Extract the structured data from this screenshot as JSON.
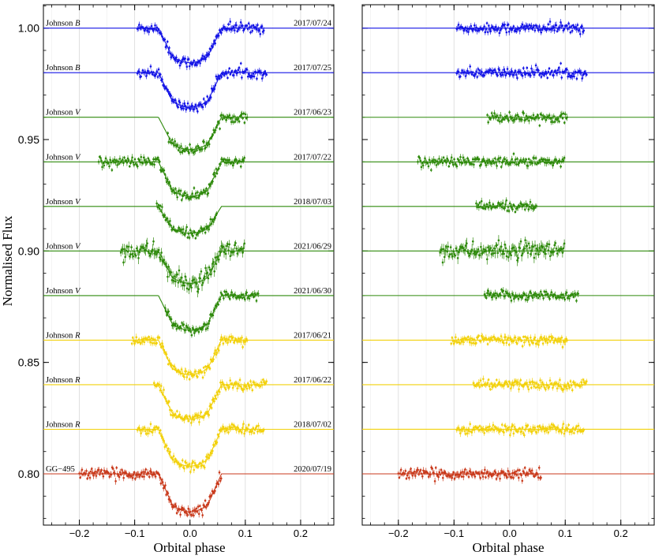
{
  "chart_data": [
    {
      "type": "line",
      "panel": "left",
      "xlabel": "Orbital phase",
      "ylabel": "Normalised Flux",
      "xlim": [
        -0.265,
        0.26
      ],
      "ylim": [
        0.777,
        1.0105
      ],
      "xticks": [
        -0.2,
        -0.1,
        0.0,
        0.1,
        0.2
      ],
      "xtick_labels": [
        "−0.2",
        "−0.1",
        "0.0",
        "0.1",
        "0.2"
      ],
      "yticks": [
        0.8,
        0.85,
        0.9,
        0.95,
        1.0
      ],
      "ytick_labels": [
        "0.80",
        "0.85",
        "0.90",
        "0.95",
        "1.00"
      ],
      "grid": "vertical",
      "transit_model": {
        "t1": -0.056,
        "t2": -0.03,
        "t3": 0.035,
        "t4": 0.058,
        "depths": [
          0.0155,
          0.0155,
          0.0145,
          0.0155,
          0.012,
          0.0145,
          0.0155,
          0.0155,
          0.0155,
          0.0165,
          0.017
        ]
      },
      "series": [
        {
          "label": "Johnson B",
          "filter": "B",
          "date": "2017/07/24",
          "baseline": 1.0,
          "color": "#1515e6",
          "x_range": [
            -0.095,
            0.135
          ]
        },
        {
          "label": "Johnson B",
          "filter": "B",
          "date": "2017/07/25",
          "baseline": 0.98,
          "color": "#1515e6",
          "x_range": [
            -0.095,
            0.14
          ]
        },
        {
          "label": "Johnson V",
          "filter": "V",
          "date": "2017/06/23",
          "baseline": 0.96,
          "color": "#2f8a0c",
          "x_range": [
            -0.04,
            0.105
          ]
        },
        {
          "label": "Johnson V",
          "filter": "V",
          "date": "2017/07/22",
          "baseline": 0.94,
          "color": "#2f8a0c",
          "x_range": [
            -0.165,
            0.1
          ]
        },
        {
          "label": "Johnson V",
          "filter": "V",
          "date": "2018/07/03",
          "baseline": 0.92,
          "color": "#2f8a0c",
          "x_range": [
            -0.06,
            0.05
          ]
        },
        {
          "label": "Johnson V",
          "filter": "V",
          "date": "2021/06/29",
          "baseline": 0.9,
          "color": "#2f8a0c",
          "x_range": [
            -0.125,
            0.1
          ]
        },
        {
          "label": "Johnson V",
          "filter": "V",
          "date": "2021/06/30",
          "baseline": 0.88,
          "color": "#2f8a0c",
          "x_range": [
            -0.045,
            0.125
          ]
        },
        {
          "label": "Johnson R",
          "filter": "R",
          "date": "2017/06/21",
          "baseline": 0.86,
          "color": "#f2d10c",
          "x_range": [
            -0.105,
            0.105
          ]
        },
        {
          "label": "Johnson R",
          "filter": "R",
          "date": "2017/06/22",
          "baseline": 0.84,
          "color": "#f2d10c",
          "x_range": [
            -0.065,
            0.14
          ]
        },
        {
          "label": "Johnson R",
          "filter": "R",
          "date": "2018/07/02",
          "baseline": 0.82,
          "color": "#f2d10c",
          "x_range": [
            -0.095,
            0.135
          ]
        },
        {
          "label": "GG−495",
          "filter": "GG-495",
          "date": "2020/07/19",
          "baseline": 0.8,
          "color": "#c93a1c",
          "x_range": [
            -0.2,
            0.058
          ]
        }
      ]
    },
    {
      "type": "scatter",
      "panel": "right",
      "xlabel": "Orbital phase",
      "ylabel": "",
      "xlim": [
        -0.265,
        0.26
      ],
      "ylim": [
        0.777,
        1.0105
      ],
      "xticks": [
        -0.2,
        -0.1,
        0.0,
        0.1,
        0.2
      ],
      "xtick_labels": [
        "−0.2",
        "−0.1",
        "0.0",
        "0.1",
        "0.2"
      ],
      "grid": "vertical",
      "description_of_values": "residuals (data minus transit model) offset to each baseline",
      "series_ref": "same baselines, colors and x ranges as left panel"
    }
  ]
}
